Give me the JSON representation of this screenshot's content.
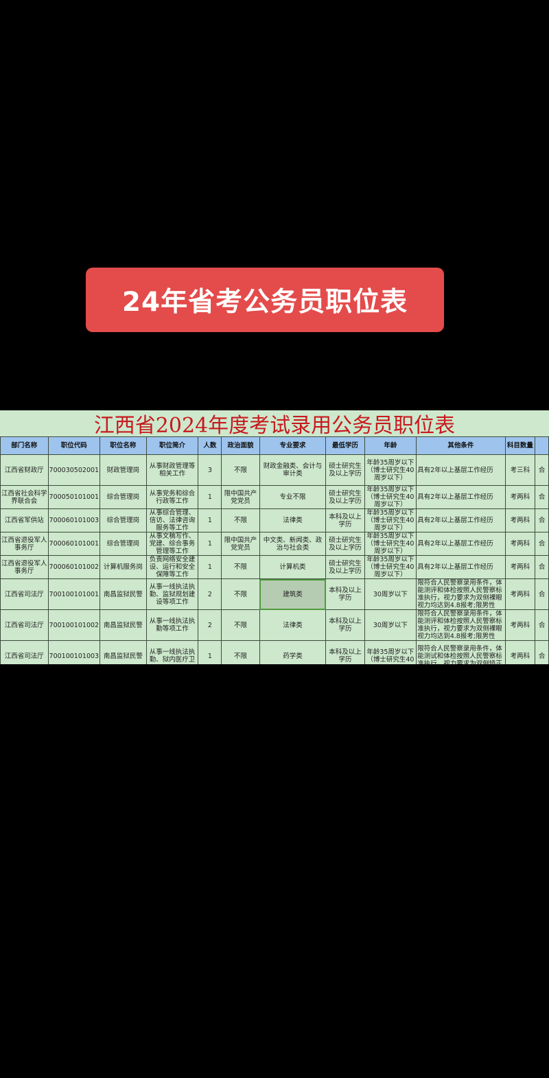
{
  "banner": {
    "title": "24年省考公务员职位表",
    "color": "#e44b4b"
  },
  "sheet": {
    "title": "江西省2024年度考试录用公务员职位表",
    "headers": [
      "部门名称",
      "职位代码",
      "职位名称",
      "职位简介",
      "人数",
      "政治面貌",
      "专业要求",
      "最低学历",
      "年龄",
      "其他条件",
      "科目数量",
      ""
    ],
    "rows": [
      [
        "江西省财政厅",
        "700030502001",
        "财政管理岗",
        "从事财政管理等相关工作",
        "3",
        "不限",
        "财政金融类、会计与审计类",
        "硕士研究生及以上学历",
        "年龄35周岁以下（博士研究生40周岁以下）",
        "具有2年以上基层工作经历",
        "考三科",
        "合"
      ],
      [
        "江西省社会科学界联合会",
        "700050101001",
        "综合管理岗",
        "从事党务和综合行政等工作",
        "1",
        "限中国共产党党员",
        "专业不限",
        "硕士研究生及以上学历",
        "年龄35周岁以下（博士研究生40周岁以下）",
        "具有2年以上基层工作经历",
        "考两科",
        "合"
      ],
      [
        "江西省军供站",
        "700060101003",
        "综合管理岗",
        "从事综合管理、信访、法律咨询服务等工作",
        "1",
        "不限",
        "法律类",
        "本科及以上学历",
        "年龄35周岁以下（博士研究生40周岁以下）",
        "具有2年以上基层工作经历",
        "考两科",
        "合"
      ],
      [
        "江西省退役军人事务厅",
        "700060101001",
        "综合管理岗",
        "从事文稿写作、党建、综合事务管理等工作",
        "1",
        "限中国共产党党员",
        "中文类、新闻类、政治与社会类",
        "硕士研究生及以上学历",
        "年龄35周岁以下（博士研究生40周岁以下）",
        "具有2年以上基层工作经历",
        "考两科",
        "合"
      ],
      [
        "江西省退役军人事务厅",
        "700060101002",
        "计算机服务岗",
        "负责网络安全建设、运行和安全保障等工作",
        "1",
        "不限",
        "计算机类",
        "硕士研究生及以上学历",
        "年龄35周岁以下（博士研究生40周岁以下）",
        "具有2年以上基层工作经历",
        "考两科",
        "合"
      ],
      [
        "江西省司法厅",
        "700100101001",
        "南昌监狱民警",
        "从事一线执法执勤、监狱规划建设等项工作",
        "2",
        "不限",
        "建筑类",
        "本科及以上学历",
        "30周岁以下",
        "限符合人民警察录用条件，体能测评和体检按照人民警察标准执行，视力要求为双侧裸眼视力均达到4.8报考;限男性",
        "考两科",
        "合"
      ],
      [
        "江西省司法厅",
        "700100101002",
        "南昌监狱民警",
        "从事一线执法执勤等项工作",
        "2",
        "不限",
        "法律类",
        "本科及以上学历",
        "30周岁以下",
        "限符合人民警察录用条件，体能测评和体检按照人民警察标准执行，视力要求为双侧裸眼视力均达到4.8报考;限男性",
        "考两科",
        "合"
      ],
      [
        "江西省司法厅",
        "700100101003",
        "南昌监狱民警",
        "从事一线执法执勤、狱内医疗卫",
        "1",
        "不限",
        "药学类",
        "本科及以上学历",
        "年龄35周岁以下（博士研究生40",
        "限符合人民警察录用条件，体能测试和体检按照人民警察标准执行，视力要求为双侧矫正",
        "考两科",
        "合"
      ]
    ],
    "selected_cell": {
      "row": 6,
      "column": "专业要求"
    },
    "colors": {
      "title": "#c8191e",
      "header": "#9ec4ee",
      "background": "#cde8cc"
    }
  }
}
